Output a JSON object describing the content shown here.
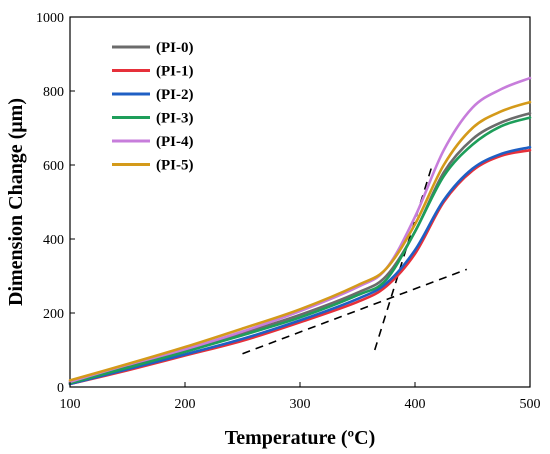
{
  "chart_data": {
    "type": "line",
    "title": "",
    "xlabel": "Temperature (ºC)",
    "ylabel": "Dimension Change (μm)",
    "xlim": [
      100,
      500
    ],
    "ylim": [
      0,
      1000
    ],
    "xticks": [
      100,
      200,
      300,
      400,
      500
    ],
    "yticks": [
      0,
      200,
      400,
      600,
      800,
      1000
    ],
    "grid": false,
    "legend_position": "top-left",
    "x": [
      100,
      150,
      200,
      250,
      300,
      350,
      375,
      400,
      425,
      450,
      475,
      500
    ],
    "series": [
      {
        "name": "(PI-0)",
        "color": "#6b6b6b",
        "values": [
          12,
          55,
          98,
          145,
          195,
          255,
          300,
          420,
          580,
          670,
          715,
          740
        ]
      },
      {
        "name": "(PI-1)",
        "color": "#e6303a",
        "values": [
          8,
          45,
          85,
          125,
          175,
          230,
          272,
          360,
          500,
          585,
          625,
          640
        ]
      },
      {
        "name": "(PI-2)",
        "color": "#1f5fc4",
        "values": [
          8,
          48,
          88,
          130,
          180,
          238,
          280,
          370,
          505,
          590,
          630,
          648
        ]
      },
      {
        "name": "(PI-3)",
        "color": "#1e9e5a",
        "values": [
          10,
          52,
          95,
          140,
          188,
          248,
          290,
          420,
          570,
          655,
          705,
          728
        ]
      },
      {
        "name": "(PI-4)",
        "color": "#c77ddb",
        "values": [
          14,
          60,
          102,
          150,
          205,
          270,
          320,
          460,
          640,
          755,
          805,
          835
        ]
      },
      {
        "name": "(PI-5)",
        "color": "#d49a1a",
        "values": [
          18,
          62,
          108,
          158,
          210,
          275,
          320,
          440,
          600,
          700,
          745,
          770
        ]
      }
    ],
    "tangent_lines": [
      {
        "style": "dashed",
        "x": [
          250,
          445
        ],
        "y": [
          90,
          318
        ]
      },
      {
        "style": "dashed",
        "x": [
          365,
          415
        ],
        "y": [
          100,
          600
        ]
      }
    ]
  }
}
